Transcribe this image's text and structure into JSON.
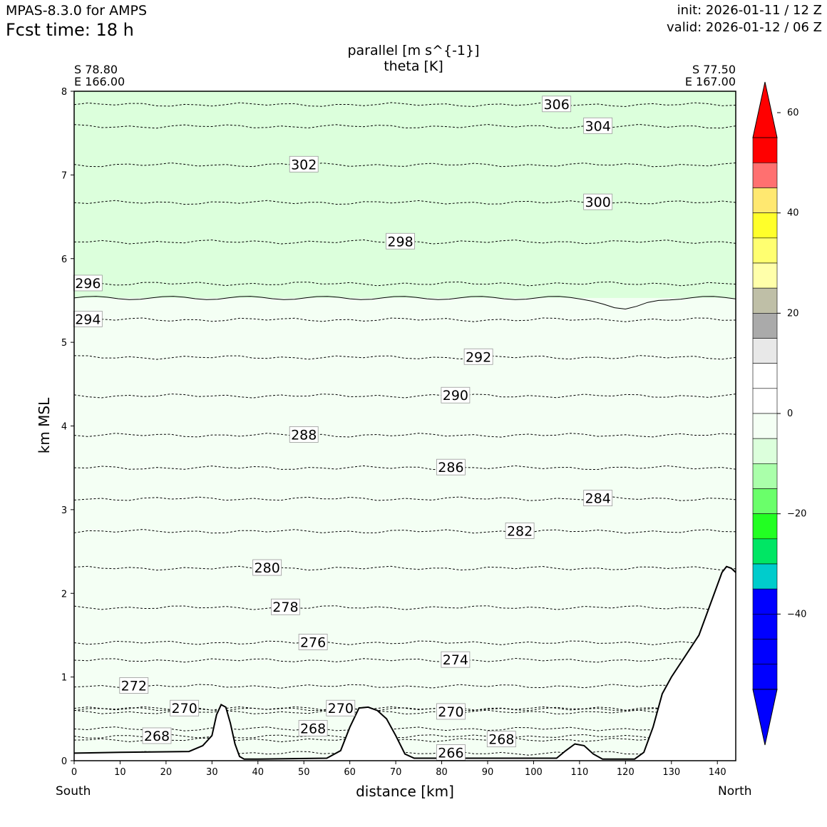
{
  "header": {
    "model_name": "MPAS-8.3.0 for AMPS",
    "fcst_time": "Fcst time:   18 h",
    "init_time": "init: 2026-01-11 / 12 Z",
    "valid_time": "valid: 2026-01-12 / 06 Z"
  },
  "endpoints": {
    "left_lat": "S 78.80",
    "left_lon": "E 166.00",
    "right_lat": "S 77.50",
    "right_lon": "E 167.00",
    "south": "South",
    "north": "North"
  },
  "chart_data": {
    "type": "contour",
    "title": "parallel [m s^{-1}]",
    "subtitle": "theta [K]",
    "xlabel": "distance [km]",
    "ylabel": "km MSL",
    "xlim": [
      0,
      144
    ],
    "ylim": [
      0,
      8
    ],
    "xticks": [
      0,
      10,
      20,
      30,
      40,
      50,
      60,
      70,
      80,
      90,
      100,
      110,
      120,
      130,
      140
    ],
    "yticks": [
      0,
      1,
      2,
      3,
      4,
      5,
      6,
      7,
      8
    ],
    "terrain": [
      [
        0,
        0.09
      ],
      [
        10,
        0.1
      ],
      [
        25,
        0.11
      ],
      [
        28,
        0.18
      ],
      [
        30,
        0.3
      ],
      [
        31,
        0.55
      ],
      [
        32,
        0.67
      ],
      [
        33,
        0.64
      ],
      [
        34,
        0.45
      ],
      [
        35,
        0.2
      ],
      [
        36,
        0.05
      ],
      [
        37,
        0.02
      ],
      [
        40,
        0.02
      ],
      [
        55,
        0.03
      ],
      [
        58,
        0.12
      ],
      [
        60,
        0.4
      ],
      [
        62,
        0.63
      ],
      [
        64,
        0.64
      ],
      [
        66,
        0.6
      ],
      [
        68,
        0.5
      ],
      [
        70,
        0.3
      ],
      [
        72,
        0.08
      ],
      [
        74,
        0.03
      ],
      [
        105,
        0.03
      ],
      [
        107,
        0.12
      ],
      [
        109,
        0.2
      ],
      [
        111,
        0.18
      ],
      [
        113,
        0.08
      ],
      [
        115,
        0.02
      ],
      [
        122,
        0.02
      ],
      [
        124,
        0.1
      ],
      [
        126,
        0.4
      ],
      [
        128,
        0.8
      ],
      [
        130,
        1.0
      ],
      [
        133,
        1.25
      ],
      [
        136,
        1.5
      ],
      [
        139,
        1.95
      ],
      [
        141,
        2.25
      ],
      [
        142,
        2.32
      ],
      [
        143,
        2.3
      ],
      [
        144,
        2.25
      ]
    ],
    "theta_contours": [
      {
        "value": 306,
        "y": 7.84,
        "label_x": 105
      },
      {
        "value": 304,
        "y": 7.58,
        "label_x": 114
      },
      {
        "value": 302,
        "y": 7.12,
        "label_x": 50
      },
      {
        "value": 300,
        "y": 6.67,
        "label_x": 114
      },
      {
        "value": 298,
        "y": 6.2,
        "label_x": 71
      },
      {
        "value": 296,
        "y": 5.7,
        "label_x": 3
      },
      {
        "value": 294,
        "y": 5.27,
        "label_x": 3
      },
      {
        "value": 292,
        "y": 4.82,
        "label_x": 88
      },
      {
        "value": 290,
        "y": 4.36,
        "label_x": 83
      },
      {
        "value": 288,
        "y": 3.89,
        "label_x": 50
      },
      {
        "value": 286,
        "y": 3.5,
        "label_x": 82
      },
      {
        "value": 284,
        "y": 3.13,
        "label_x": 114
      },
      {
        "value": 282,
        "y": 2.74,
        "label_x": 97
      },
      {
        "value": 280,
        "y": 2.3,
        "label_x": 42
      },
      {
        "value": 278,
        "y": 1.83,
        "label_x": 46
      },
      {
        "value": 276,
        "y": 1.41,
        "label_x": 52
      },
      {
        "value": 274,
        "y": 1.2,
        "label_x": 83
      },
      {
        "value": 272,
        "y": 0.89,
        "label_x": 13
      },
      {
        "value": 270,
        "y": 0.62,
        "label_x": 24
      },
      {
        "value": 270,
        "y": 0.62,
        "label_x": 58
      },
      {
        "value": 270,
        "y": 0.58,
        "label_x": 82
      },
      {
        "value": 268,
        "y": 0.29,
        "label_x": 18
      },
      {
        "value": 268,
        "y": 0.38,
        "label_x": 52
      },
      {
        "value": 268,
        "y": 0.25,
        "label_x": 93
      },
      {
        "value": 266,
        "y": 0.09,
        "label_x": 82
      }
    ],
    "wind_zero_level_km": 5.53,
    "colorbar": {
      "range": [
        -60,
        60
      ],
      "ticks": [
        60,
        40,
        20,
        0,
        -20,
        -40
      ],
      "bins": [
        {
          "from": 55,
          "to": 60,
          "color": "#ff0000"
        },
        {
          "from": 50,
          "to": 55,
          "color": "#ff0000"
        },
        {
          "from": 45,
          "to": 50,
          "color": "#ff7070"
        },
        {
          "from": 40,
          "to": 45,
          "color": "#ffe870"
        },
        {
          "from": 35,
          "to": 40,
          "color": "#ffff2a"
        },
        {
          "from": 30,
          "to": 35,
          "color": "#ffff70"
        },
        {
          "from": 25,
          "to": 30,
          "color": "#ffffaa"
        },
        {
          "from": 20,
          "to": 25,
          "color": "#bfbfa7"
        },
        {
          "from": 15,
          "to": 20,
          "color": "#aaaaaa"
        },
        {
          "from": 10,
          "to": 15,
          "color": "#e8e8e8"
        },
        {
          "from": 5,
          "to": 10,
          "color": "#ffffff"
        },
        {
          "from": 0,
          "to": 5,
          "color": "#ffffff"
        },
        {
          "from": -5,
          "to": 0,
          "color": "#f4fff4"
        },
        {
          "from": -10,
          "to": -5,
          "color": "#dcffdc"
        },
        {
          "from": -15,
          "to": -10,
          "color": "#aaffaa"
        },
        {
          "from": -20,
          "to": -15,
          "color": "#6aff6a"
        },
        {
          "from": -25,
          "to": -20,
          "color": "#22ff22"
        },
        {
          "from": -30,
          "to": -25,
          "color": "#00e664"
        },
        {
          "from": -35,
          "to": -30,
          "color": "#00cccc"
        },
        {
          "from": -40,
          "to": -35,
          "color": "#0000ff"
        },
        {
          "from": -45,
          "to": -40,
          "color": "#0000ff"
        },
        {
          "from": -50,
          "to": -45,
          "color": "#0000ff"
        },
        {
          "from": -55,
          "to": -50,
          "color": "#0000ff"
        },
        {
          "from": -60,
          "to": -55,
          "color": "#0000ff"
        }
      ]
    }
  }
}
